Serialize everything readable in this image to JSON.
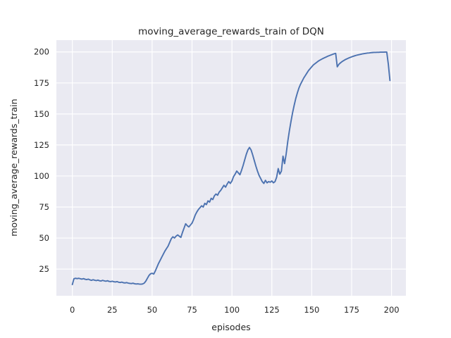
{
  "chart_data": {
    "type": "line",
    "title": "moving_average_rewards_train of DQN",
    "xlabel": "episodes",
    "ylabel": "moving_average_rewards_train",
    "legend": false,
    "grid": true,
    "style": "seaborn-darkgrid",
    "xlim": [
      -10,
      209
    ],
    "ylim": [
      3.5,
      209.5
    ],
    "x_ticks": [
      0,
      25,
      50,
      75,
      100,
      125,
      150,
      175,
      200
    ],
    "y_ticks": [
      25,
      50,
      75,
      100,
      125,
      150,
      175,
      200
    ],
    "colors": {
      "line": "#4c72b0",
      "plot_bg": "#eaeaf2",
      "grid": "#ffffff",
      "text": "#262626",
      "figure_bg": "#ffffff"
    },
    "series": [
      {
        "name": "moving_average_rewards_train",
        "x_start": 0,
        "x_step": 1,
        "values": [
          12.5,
          17.2,
          17.6,
          17.3,
          17.6,
          17.2,
          16.9,
          17.3,
          16.8,
          16.5,
          16.9,
          16.3,
          15.9,
          16.4,
          16.0,
          15.7,
          16.1,
          15.6,
          15.4,
          15.9,
          15.5,
          15.2,
          15.6,
          15.1,
          14.9,
          15.2,
          14.8,
          14.6,
          14.9,
          14.4,
          14.2,
          14.5,
          14.0,
          13.8,
          14.1,
          13.7,
          13.5,
          13.3,
          13.6,
          13.2,
          13.0,
          13.1,
          12.9,
          12.8,
          13.0,
          13.6,
          15.2,
          17.5,
          19.8,
          21.2,
          21.6,
          21.0,
          23.5,
          26.5,
          29.5,
          32.0,
          34.5,
          37.0,
          39.5,
          41.5,
          43.5,
          46.5,
          49.5,
          51.0,
          50.0,
          51.5,
          52.5,
          51.5,
          50.5,
          54.5,
          58.0,
          61.5,
          60.0,
          59.0,
          60.5,
          62.0,
          65.0,
          68.5,
          71.0,
          73.0,
          74.5,
          76.0,
          75.0,
          78.0,
          77.0,
          80.0,
          79.0,
          82.0,
          81.0,
          84.0,
          85.5,
          84.5,
          87.0,
          88.5,
          90.5,
          92.5,
          91.0,
          93.5,
          95.5,
          94.0,
          96.0,
          99.5,
          101.5,
          104.0,
          102.5,
          101.0,
          104.5,
          108.5,
          113.0,
          117.5,
          121.0,
          123.0,
          121.0,
          117.0,
          112.5,
          108.0,
          104.0,
          100.5,
          98.0,
          95.5,
          94.0,
          96.5,
          94.5,
          95.5,
          95.0,
          96.0,
          94.5,
          95.5,
          99.0,
          106.0,
          101.5,
          104.0,
          116.0,
          110.0,
          118.0,
          128.0,
          136.5,
          144.0,
          151.0,
          157.0,
          162.5,
          167.0,
          171.0,
          174.0,
          176.5,
          179.0,
          181.0,
          183.0,
          185.0,
          186.5,
          188.0,
          189.5,
          190.5,
          191.5,
          192.5,
          193.3,
          194.0,
          194.7,
          195.3,
          195.9,
          196.5,
          197.0,
          197.5,
          198.0,
          198.5,
          198.8,
          188.0,
          190.0,
          191.2,
          192.2,
          193.0,
          193.8,
          194.4,
          195.0,
          195.5,
          196.0,
          196.5,
          196.9,
          197.3,
          197.6,
          197.9,
          198.2,
          198.5,
          198.7,
          198.9,
          199.1,
          199.2,
          199.4,
          199.5,
          199.6,
          199.6,
          199.7,
          199.7,
          199.8,
          199.8,
          199.8,
          199.9,
          199.9,
          190.0,
          177.0
        ]
      }
    ]
  }
}
